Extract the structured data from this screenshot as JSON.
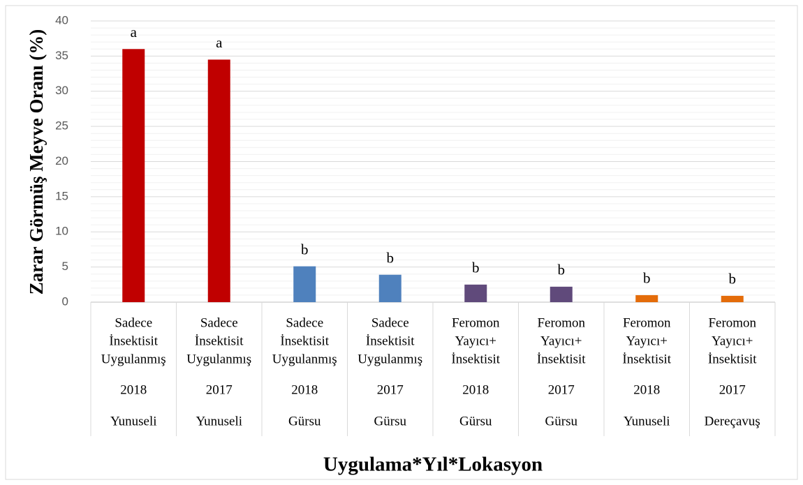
{
  "chart_data": {
    "type": "bar",
    "y_axis_label": "Zarar Görmüş Meyve Oranı (%)",
    "x_axis_label": "Uygulama*Yıl*Lokasyon",
    "categories": [
      {
        "treatment": [
          "Sadece",
          "İnsektisit",
          "Uygulanmış"
        ],
        "year": "2018",
        "location": "Yunuseli"
      },
      {
        "treatment": [
          "Sadece",
          "İnsektisit",
          "Uygulanmış"
        ],
        "year": "2017",
        "location": "Yunuseli"
      },
      {
        "treatment": [
          "Sadece",
          "İnsektisit",
          "Uygulanmış"
        ],
        "year": "2018",
        "location": "Gürsu"
      },
      {
        "treatment": [
          "Sadece",
          "İnsektisit",
          "Uygulanmış"
        ],
        "year": "2017",
        "location": "Gürsu"
      },
      {
        "treatment": [
          "Feromon",
          "Yayıcı+",
          "İnsektisit"
        ],
        "year": "2018",
        "location": "Gürsu"
      },
      {
        "treatment": [
          "Feromon",
          "Yayıcı+",
          "İnsektisit"
        ],
        "year": "2017",
        "location": "Gürsu"
      },
      {
        "treatment": [
          "Feromon",
          "Yayıcı+",
          "İnsektisit"
        ],
        "year": "2018",
        "location": "Yunuseli"
      },
      {
        "treatment": [
          "Feromon",
          "Yayıcı+",
          "İnsektisit"
        ],
        "year": "2017",
        "location": "Dereçavuş"
      }
    ],
    "values": [
      36,
      34.5,
      5.1,
      3.9,
      2.5,
      2.2,
      1.0,
      0.9
    ],
    "annotations": [
      "a",
      "a",
      "b",
      "b",
      "b",
      "b",
      "b",
      "b"
    ],
    "colors": [
      "#c00000",
      "#c00000",
      "#4f81bd",
      "#4f81bd",
      "#604a7b",
      "#604a7b",
      "#e46c0a",
      "#e46c0a"
    ],
    "ylim": [
      0,
      40
    ],
    "yticks": [
      0,
      5,
      10,
      15,
      20,
      25,
      30,
      35,
      40
    ],
    "grid": true,
    "minor_grid": true
  }
}
